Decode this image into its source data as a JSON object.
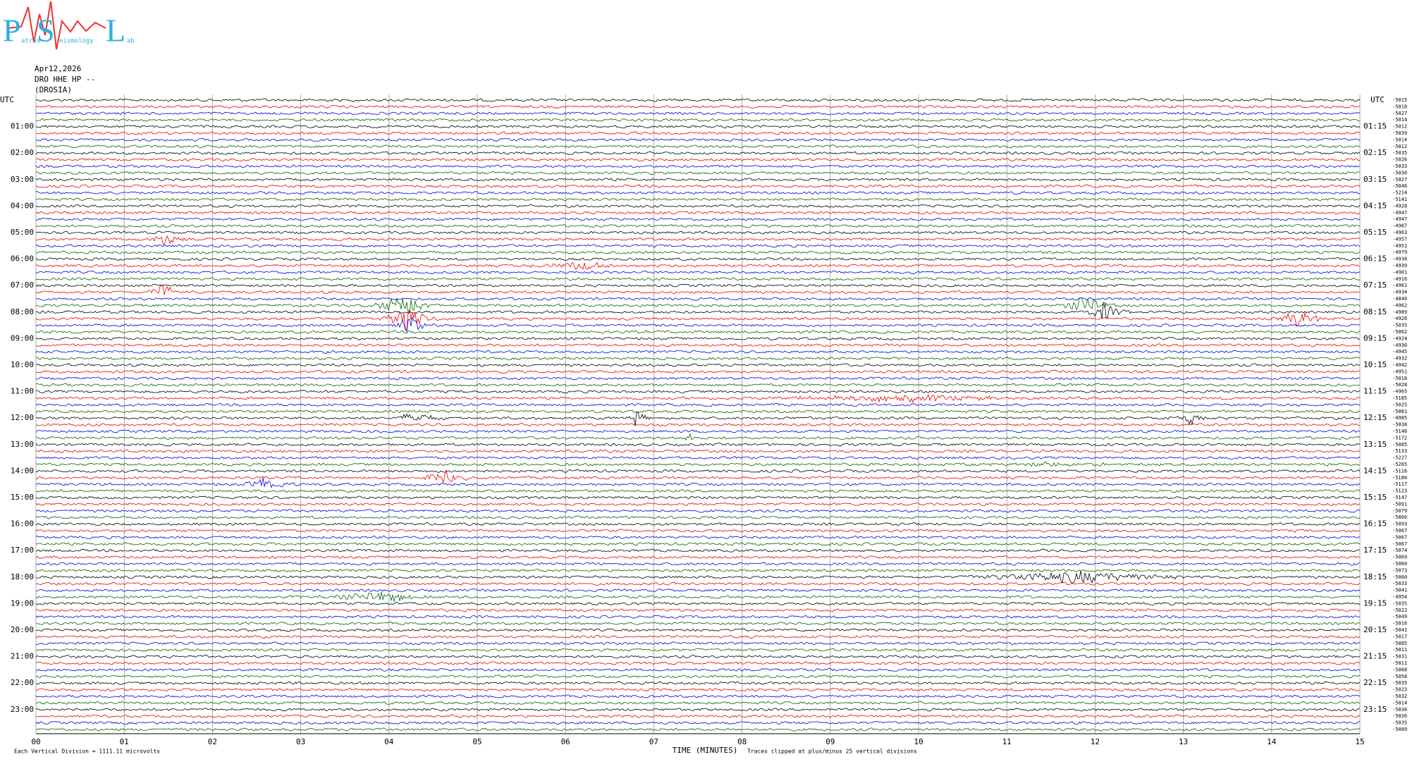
{
  "logo": {
    "letters": [
      "P",
      "S",
      "L"
    ],
    "small": [
      "atras",
      "eismology",
      "ab"
    ]
  },
  "header": {
    "date": "Apr12,2026",
    "channel": "DRO HHE HP --",
    "station": "(DROSIA)"
  },
  "left_axis": {
    "title": "UTC",
    "labels": [
      "01:00",
      "02:00",
      "03:00",
      "04:00",
      "05:00",
      "06:00",
      "07:00",
      "08:00",
      "09:00",
      "10:00",
      "11:00",
      "12:00",
      "13:00",
      "14:00",
      "15:00",
      "16:00",
      "17:00",
      "18:00",
      "19:00",
      "20:00",
      "21:00",
      "22:00",
      "23:00"
    ]
  },
  "right_axis": {
    "title": "UTC",
    "labels": [
      "01:15",
      "02:15",
      "03:15",
      "04:15",
      "05:15",
      "06:15",
      "07:15",
      "08:15",
      "09:15",
      "10:15",
      "11:15",
      "12:15",
      "13:15",
      "14:15",
      "15:15",
      "16:15",
      "17:15",
      "18:15",
      "19:15",
      "20:15",
      "21:15",
      "22:15",
      "23:15"
    ]
  },
  "offsets": [
    "-5015",
    "-5018",
    "-5027",
    "-5014",
    "-5012",
    "-5039",
    "-5014",
    "-5012",
    "-5035",
    "-5026",
    "-5033",
    "-5030",
    "-5027",
    "-5046",
    "-5214",
    "-5141",
    "-4928",
    "-4947",
    "-4947",
    "-4987",
    "-4963",
    "-4957",
    "-4951",
    "-4979",
    "-4938",
    "-4939",
    "-4901",
    "-4916",
    "-4961",
    "-4934",
    "-4840",
    "-4962",
    "-4989",
    "-4926",
    "-5035",
    "-5062",
    "-4924",
    "-4936",
    "-4945",
    "-4932",
    "-4942",
    "-4951",
    "-5018",
    "-5028",
    "-4965",
    "-5185",
    "-5025",
    "-5081",
    "-4985",
    "-5038",
    "-5146",
    "-5172",
    "-5085",
    "-5133",
    "-5227",
    "-5265",
    "-5116",
    "-5180",
    "-5117",
    "-5123",
    "-5147",
    "-5091",
    "-5079",
    "-5060",
    "-5093",
    "-5067",
    "-5067",
    "-5067",
    "-5074",
    "-5069",
    "-5060",
    "-5073",
    "-5060",
    "-5033",
    "-5041",
    "-4954",
    "-5035",
    "-5022",
    "-5049",
    "-5016",
    "-5041",
    "-5017",
    "-5085",
    "-5011",
    "-5031",
    "-5011",
    "-5068",
    "-5058",
    "-5035",
    "-5023",
    "-5032",
    "-5014",
    "-5030",
    "-5026",
    "-5035",
    "-5089"
  ],
  "x_axis": {
    "labels": [
      "00",
      "01",
      "02",
      "03",
      "04",
      "05",
      "06",
      "07",
      "08",
      "09",
      "10",
      "11",
      "12",
      "13",
      "14",
      "15"
    ],
    "title": "TIME (MINUTES)"
  },
  "footer": {
    "scale": "Each Vertical Division = 1111.11 microvolts",
    "clip": "Traces clipped at plus/minus 25 vertical divisions"
  }
}
